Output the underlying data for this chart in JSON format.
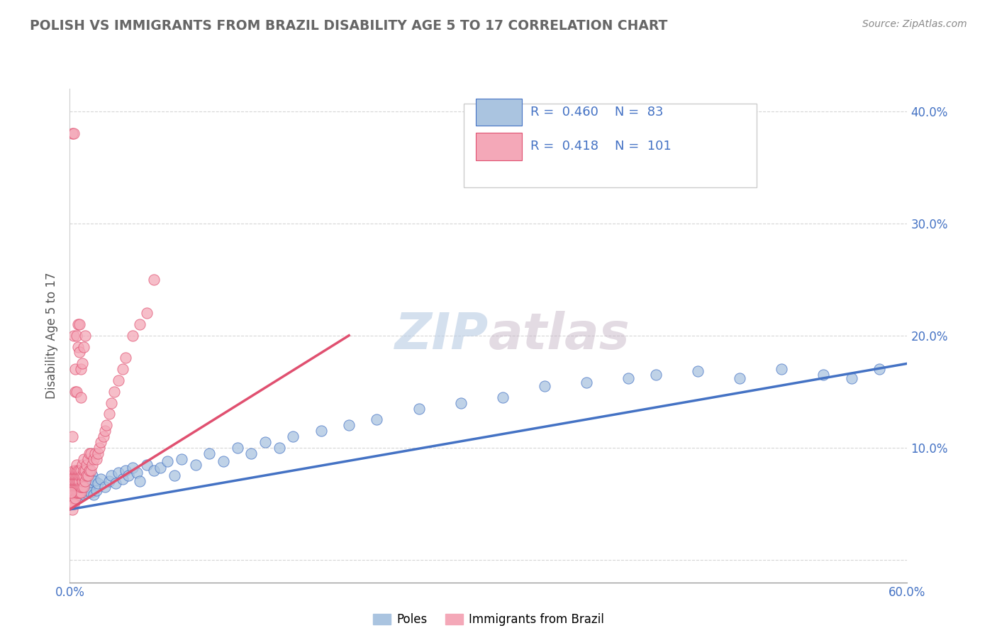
{
  "title": "POLISH VS IMMIGRANTS FROM BRAZIL DISABILITY AGE 5 TO 17 CORRELATION CHART",
  "source_text": "Source: ZipAtlas.com",
  "ylabel": "Disability Age 5 to 17",
  "xlim": [
    0.0,
    0.6
  ],
  "ylim": [
    -0.02,
    0.42
  ],
  "xticks": [
    0.0,
    0.1,
    0.2,
    0.3,
    0.4,
    0.5,
    0.6
  ],
  "xticklabels": [
    "0.0%",
    "",
    "",
    "",
    "",
    "",
    "60.0%"
  ],
  "yticks": [
    0.0,
    0.1,
    0.2,
    0.3,
    0.4
  ],
  "yticklabels_right": [
    "",
    "10.0%",
    "20.0%",
    "30.0%",
    "40.0%"
  ],
  "legend_r_poles": "0.460",
  "legend_n_poles": "83",
  "legend_r_brazil": "0.418",
  "legend_n_brazil": "101",
  "color_poles": "#aac4e0",
  "color_brazil": "#f4a8b8",
  "color_trend_poles": "#4472c4",
  "color_trend_brazil": "#e05070",
  "watermark": "ZIPatlas",
  "watermark_color": "#c8d8ec",
  "background_color": "#ffffff",
  "legend_text_color": "#4472c4",
  "title_color": "#666666",
  "tick_color": "#4472c4",
  "poles_x": [
    0.001,
    0.001,
    0.001,
    0.002,
    0.002,
    0.002,
    0.003,
    0.003,
    0.003,
    0.003,
    0.004,
    0.004,
    0.004,
    0.005,
    0.005,
    0.005,
    0.006,
    0.006,
    0.006,
    0.007,
    0.007,
    0.008,
    0.008,
    0.008,
    0.009,
    0.009,
    0.01,
    0.01,
    0.01,
    0.011,
    0.012,
    0.012,
    0.013,
    0.014,
    0.015,
    0.015,
    0.016,
    0.017,
    0.018,
    0.019,
    0.02,
    0.022,
    0.025,
    0.028,
    0.03,
    0.033,
    0.035,
    0.038,
    0.04,
    0.042,
    0.045,
    0.048,
    0.05,
    0.055,
    0.06,
    0.065,
    0.07,
    0.075,
    0.08,
    0.09,
    0.1,
    0.11,
    0.12,
    0.13,
    0.14,
    0.15,
    0.16,
    0.18,
    0.2,
    0.22,
    0.25,
    0.28,
    0.31,
    0.34,
    0.37,
    0.4,
    0.42,
    0.45,
    0.48,
    0.51,
    0.54,
    0.56,
    0.58
  ],
  "poles_y": [
    0.06,
    0.065,
    0.055,
    0.07,
    0.058,
    0.062,
    0.068,
    0.06,
    0.072,
    0.058,
    0.065,
    0.055,
    0.07,
    0.06,
    0.075,
    0.058,
    0.068,
    0.062,
    0.072,
    0.065,
    0.058,
    0.07,
    0.06,
    0.075,
    0.062,
    0.068,
    0.065,
    0.058,
    0.072,
    0.06,
    0.075,
    0.062,
    0.068,
    0.065,
    0.06,
    0.072,
    0.075,
    0.058,
    0.07,
    0.062,
    0.068,
    0.072,
    0.065,
    0.07,
    0.075,
    0.068,
    0.078,
    0.072,
    0.08,
    0.075,
    0.082,
    0.078,
    0.07,
    0.085,
    0.08,
    0.082,
    0.088,
    0.075,
    0.09,
    0.085,
    0.095,
    0.088,
    0.1,
    0.095,
    0.105,
    0.1,
    0.11,
    0.115,
    0.12,
    0.125,
    0.135,
    0.14,
    0.145,
    0.155,
    0.158,
    0.162,
    0.165,
    0.168,
    0.162,
    0.17,
    0.165,
    0.162,
    0.17
  ],
  "brazil_x": [
    0.001,
    0.001,
    0.001,
    0.001,
    0.001,
    0.002,
    0.002,
    0.002,
    0.002,
    0.002,
    0.002,
    0.002,
    0.003,
    0.003,
    0.003,
    0.003,
    0.003,
    0.003,
    0.003,
    0.004,
    0.004,
    0.004,
    0.004,
    0.004,
    0.004,
    0.005,
    0.005,
    0.005,
    0.005,
    0.005,
    0.005,
    0.006,
    0.006,
    0.006,
    0.006,
    0.006,
    0.007,
    0.007,
    0.007,
    0.007,
    0.007,
    0.008,
    0.008,
    0.008,
    0.008,
    0.009,
    0.009,
    0.009,
    0.009,
    0.01,
    0.01,
    0.01,
    0.01,
    0.011,
    0.011,
    0.012,
    0.012,
    0.013,
    0.013,
    0.014,
    0.014,
    0.015,
    0.015,
    0.016,
    0.017,
    0.018,
    0.019,
    0.02,
    0.021,
    0.022,
    0.024,
    0.025,
    0.026,
    0.028,
    0.03,
    0.032,
    0.035,
    0.038,
    0.04,
    0.045,
    0.05,
    0.055,
    0.06,
    0.002,
    0.003,
    0.004,
    0.005,
    0.006,
    0.007,
    0.008,
    0.001,
    0.002,
    0.003,
    0.004,
    0.005,
    0.006,
    0.007,
    0.008,
    0.009,
    0.01,
    0.011
  ],
  "brazil_y": [
    0.05,
    0.06,
    0.065,
    0.055,
    0.07,
    0.045,
    0.055,
    0.06,
    0.065,
    0.07,
    0.075,
    0.05,
    0.055,
    0.06,
    0.065,
    0.07,
    0.075,
    0.08,
    0.05,
    0.06,
    0.065,
    0.07,
    0.075,
    0.08,
    0.055,
    0.06,
    0.065,
    0.07,
    0.075,
    0.08,
    0.085,
    0.06,
    0.065,
    0.07,
    0.075,
    0.08,
    0.06,
    0.065,
    0.07,
    0.075,
    0.08,
    0.06,
    0.065,
    0.075,
    0.08,
    0.065,
    0.07,
    0.075,
    0.085,
    0.065,
    0.075,
    0.08,
    0.09,
    0.07,
    0.08,
    0.075,
    0.085,
    0.075,
    0.09,
    0.08,
    0.095,
    0.08,
    0.095,
    0.085,
    0.09,
    0.095,
    0.09,
    0.095,
    0.1,
    0.105,
    0.11,
    0.115,
    0.12,
    0.13,
    0.14,
    0.15,
    0.16,
    0.17,
    0.18,
    0.2,
    0.21,
    0.22,
    0.25,
    0.38,
    0.38,
    0.15,
    0.15,
    0.21,
    0.21,
    0.145,
    0.06,
    0.11,
    0.2,
    0.17,
    0.2,
    0.19,
    0.185,
    0.17,
    0.175,
    0.19,
    0.2
  ],
  "trend_poles_x0": 0.0,
  "trend_poles_x1": 0.6,
  "trend_poles_y0": 0.045,
  "trend_poles_y1": 0.175,
  "trend_brazil_x0": 0.0,
  "trend_brazil_x1": 0.2,
  "trend_brazil_y0": 0.045,
  "trend_brazil_y1": 0.2
}
